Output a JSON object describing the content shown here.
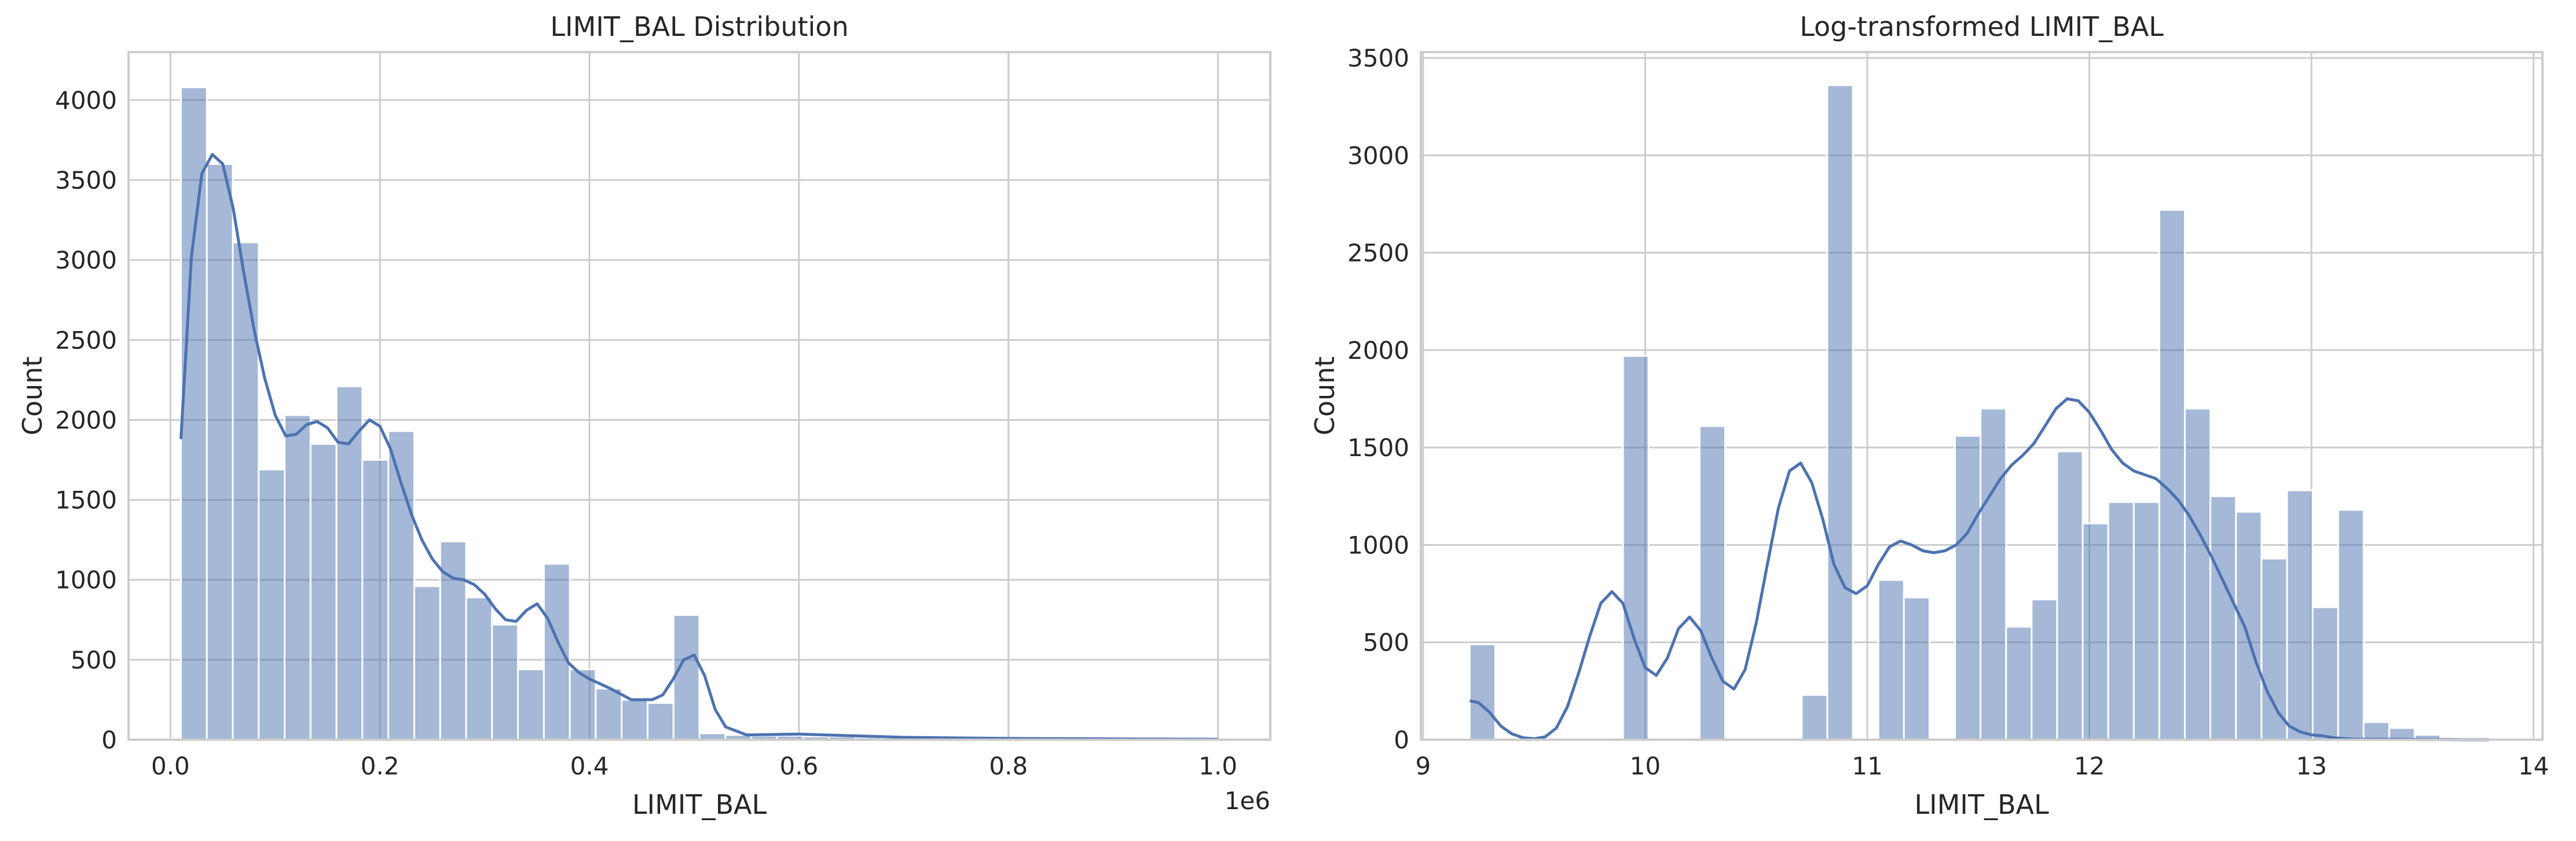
{
  "colors": {
    "bar_fill": "#4C72B0",
    "bar_opacity": 0.5,
    "kde_line": "#4C72B0",
    "grid": "#cccccc",
    "spine": "#cccccc",
    "background": "#ffffff"
  },
  "chart_data": [
    {
      "type": "bar",
      "subtype": "histogram_with_kde",
      "title": "LIMIT_BAL Distribution",
      "xlabel": "LIMIT_BAL",
      "ylabel": "Count",
      "x_offset_label": "1e6",
      "xlim": [
        -0.04,
        1.05
      ],
      "ylim": [
        0,
        4300
      ],
      "xticks": [
        0.0,
        0.2,
        0.4,
        0.6,
        0.8,
        1.0
      ],
      "xtick_labels": [
        "0.0",
        "0.2",
        "0.4",
        "0.6",
        "0.8",
        "1.0"
      ],
      "yticks": [
        0,
        500,
        1000,
        1500,
        2000,
        2500,
        3000,
        3500,
        4000
      ],
      "ytick_labels": [
        "0",
        "500",
        "1000",
        "1500",
        "2000",
        "2500",
        "3000",
        "3500",
        "4000"
      ],
      "grid": true,
      "bin_start": 0.01,
      "bin_width": 0.02475,
      "counts": [
        4080,
        3600,
        3110,
        1690,
        2030,
        1850,
        2210,
        1750,
        1930,
        960,
        1240,
        890,
        720,
        440,
        1100,
        440,
        320,
        250,
        230,
        780,
        40,
        30,
        25,
        25,
        20,
        20,
        15,
        10,
        10,
        10,
        8,
        8,
        6,
        6,
        5,
        5,
        5,
        4,
        3,
        3
      ],
      "kde": {
        "x": [
          0.01,
          0.02,
          0.03,
          0.04,
          0.05,
          0.06,
          0.07,
          0.08,
          0.09,
          0.1,
          0.11,
          0.12,
          0.13,
          0.14,
          0.15,
          0.16,
          0.17,
          0.18,
          0.19,
          0.2,
          0.21,
          0.22,
          0.23,
          0.24,
          0.25,
          0.26,
          0.27,
          0.28,
          0.29,
          0.3,
          0.31,
          0.32,
          0.33,
          0.34,
          0.35,
          0.36,
          0.37,
          0.38,
          0.39,
          0.4,
          0.42,
          0.44,
          0.46,
          0.47,
          0.48,
          0.49,
          0.5,
          0.51,
          0.52,
          0.53,
          0.55,
          0.6,
          0.65,
          0.7,
          0.8,
          0.9,
          1.0
        ],
        "y": [
          1880,
          3020,
          3540,
          3660,
          3600,
          3320,
          2920,
          2560,
          2260,
          2030,
          1900,
          1910,
          1970,
          1990,
          1950,
          1860,
          1850,
          1930,
          2000,
          1960,
          1820,
          1610,
          1410,
          1250,
          1130,
          1050,
          1010,
          1000,
          970,
          910,
          820,
          750,
          740,
          810,
          850,
          760,
          610,
          480,
          420,
          380,
          320,
          250,
          250,
          280,
          380,
          500,
          530,
          400,
          190,
          80,
          30,
          35,
          25,
          15,
          8,
          5,
          3
        ]
      }
    },
    {
      "type": "bar",
      "subtype": "histogram_with_kde",
      "title": "Log-transformed LIMIT_BAL",
      "xlabel": "LIMIT_BAL",
      "ylabel": "Count",
      "xlim": [
        8.99,
        14.04
      ],
      "ylim": [
        0,
        3530
      ],
      "xticks": [
        9,
        10,
        11,
        12,
        13,
        14
      ],
      "xtick_labels": [
        "9",
        "10",
        "11",
        "12",
        "13",
        "14"
      ],
      "yticks": [
        0,
        500,
        1000,
        1500,
        2000,
        2500,
        3000,
        3500
      ],
      "ytick_labels": [
        "0",
        "500",
        "1000",
        "1500",
        "2000",
        "2500",
        "3000",
        "3500"
      ],
      "grid": true,
      "bin_start": 9.21,
      "bin_width": 0.115,
      "counts": [
        490,
        0,
        0,
        0,
        0,
        0,
        1970,
        0,
        0,
        1610,
        0,
        0,
        0,
        230,
        3360,
        0,
        820,
        730,
        0,
        1560,
        1700,
        580,
        720,
        1480,
        1110,
        1220,
        1220,
        2720,
        1700,
        1250,
        1170,
        930,
        1280,
        680,
        1180,
        90,
        60,
        25,
        0,
        0
      ],
      "kde": {
        "x": [
          9.21,
          9.25,
          9.3,
          9.35,
          9.4,
          9.45,
          9.5,
          9.55,
          9.6,
          9.65,
          9.7,
          9.75,
          9.8,
          9.85,
          9.9,
          9.95,
          10.0,
          10.05,
          10.1,
          10.15,
          10.2,
          10.25,
          10.3,
          10.35,
          10.4,
          10.45,
          10.5,
          10.55,
          10.6,
          10.65,
          10.7,
          10.75,
          10.8,
          10.85,
          10.9,
          10.95,
          11.0,
          11.05,
          11.1,
          11.15,
          11.2,
          11.25,
          11.3,
          11.35,
          11.4,
          11.45,
          11.5,
          11.55,
          11.6,
          11.65,
          11.7,
          11.75,
          11.8,
          11.85,
          11.9,
          11.95,
          12.0,
          12.05,
          12.1,
          12.15,
          12.2,
          12.25,
          12.3,
          12.35,
          12.4,
          12.45,
          12.5,
          12.55,
          12.6,
          12.65,
          12.7,
          12.75,
          12.8,
          12.85,
          12.9,
          12.95,
          13.0,
          13.05,
          13.1,
          13.15,
          13.2,
          13.3,
          13.4,
          13.5,
          13.6,
          13.7,
          13.8
        ],
        "y": [
          200,
          190,
          140,
          70,
          30,
          10,
          5,
          15,
          60,
          170,
          340,
          530,
          700,
          760,
          700,
          520,
          370,
          330,
          420,
          570,
          630,
          560,
          420,
          300,
          260,
          360,
          600,
          900,
          1190,
          1380,
          1420,
          1320,
          1130,
          900,
          780,
          750,
          790,
          900,
          990,
          1020,
          1000,
          970,
          960,
          970,
          1000,
          1060,
          1160,
          1250,
          1340,
          1410,
          1460,
          1520,
          1610,
          1700,
          1750,
          1740,
          1680,
          1590,
          1490,
          1420,
          1380,
          1360,
          1340,
          1290,
          1230,
          1150,
          1050,
          940,
          820,
          700,
          580,
          400,
          250,
          140,
          70,
          40,
          25,
          20,
          10,
          5,
          3,
          2,
          2,
          1,
          1,
          0,
          0
        ]
      }
    }
  ]
}
